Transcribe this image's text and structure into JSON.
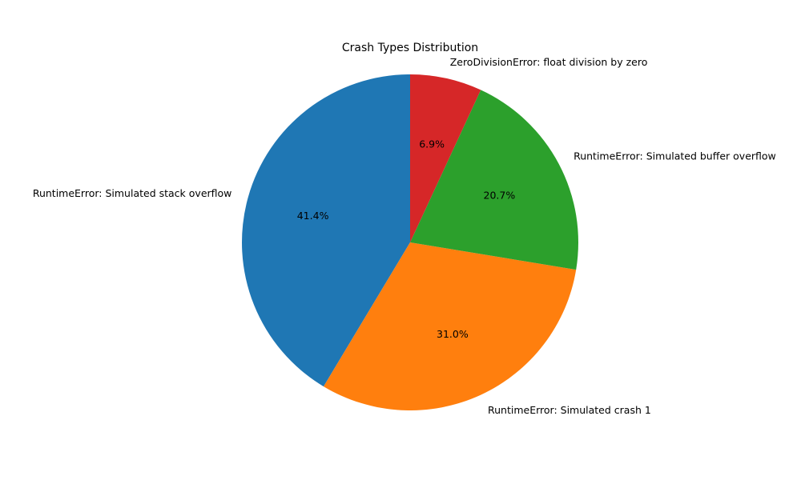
{
  "chart_data": {
    "type": "pie",
    "title": "Crash Types Distribution",
    "start_angle_deg": 90,
    "direction": "counterclockwise",
    "legend": "none",
    "slices": [
      {
        "label": "RuntimeError: Simulated stack overflow",
        "value": 41.4,
        "pct_label": "41.4%",
        "color": "#1f77b4"
      },
      {
        "label": "RuntimeError: Simulated crash 1",
        "value": 31.0,
        "pct_label": "31.0%",
        "color": "#ff7f0e"
      },
      {
        "label": "RuntimeError: Simulated buffer overflow",
        "value": 20.7,
        "pct_label": "20.7%",
        "color": "#2ca02c"
      },
      {
        "label": "ZeroDivisionError: float division by zero",
        "value": 6.9,
        "pct_label": "6.9%",
        "color": "#d62728"
      }
    ]
  }
}
